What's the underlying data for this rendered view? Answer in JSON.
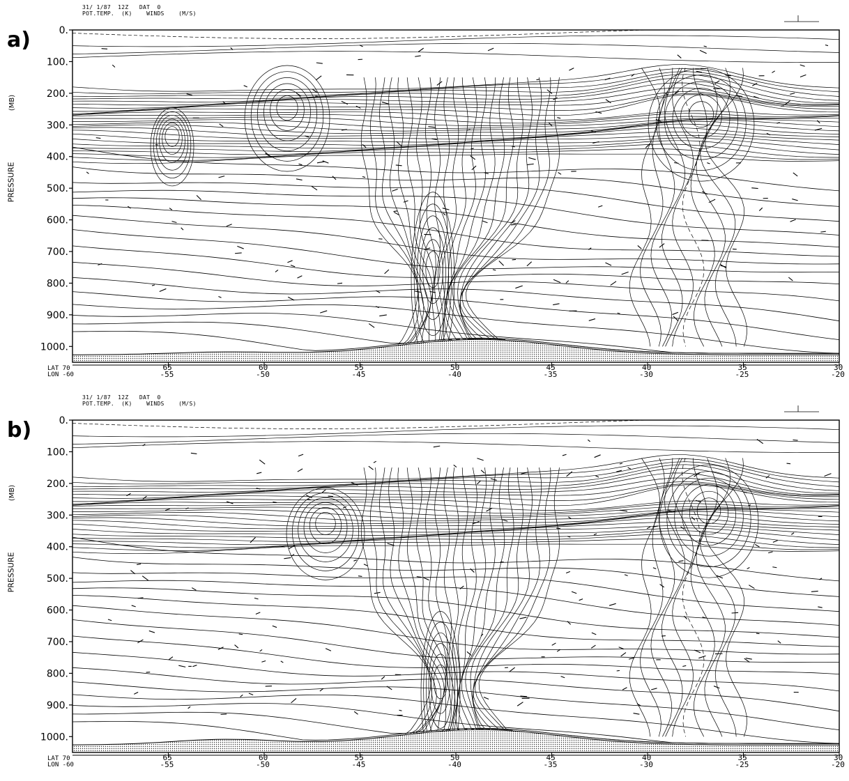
{
  "chart_data": [
    {
      "panel_label": "a)",
      "type": "contour",
      "header_line1": "31/ 1/87  12Z   DAT  0",
      "header_line2": "POT.TEMP.  (K)    WINDS    (M/S)",
      "ylabel": "PRESSURE",
      "yunit": "(MB)",
      "y_ticks": [
        "0.",
        "100.",
        "200.",
        "300.",
        "400.",
        "500.",
        "600.",
        "700.",
        "800.",
        "900.",
        "1000."
      ],
      "y_values": [
        0,
        100,
        200,
        300,
        400,
        500,
        600,
        700,
        800,
        900,
        1000
      ],
      "ylim": [
        0,
        1050
      ],
      "lat_label": "LAT 70",
      "lon_label": "LON -60",
      "lat_ticks": [
        "65",
        "60",
        "55",
        "50",
        "45",
        "40",
        "35",
        "30"
      ],
      "lon_ticks": [
        "-55",
        "-50",
        "-45",
        "-40",
        "-35",
        "-30",
        "-25",
        "-20"
      ],
      "lat_range": [
        70,
        30
      ],
      "lon_range": [
        -60,
        -20
      ]
    },
    {
      "panel_label": "b)",
      "type": "contour",
      "header_line1": "31/ 1/87  12Z   DAT  0",
      "header_line2": "POT.TEMP.  (K)    WINDS    (M/S)",
      "ylabel": "PRESSURE",
      "yunit": "(MB)",
      "y_ticks": [
        "0.",
        "100.",
        "200.",
        "300.",
        "400.",
        "500.",
        "600.",
        "700.",
        "800.",
        "900.",
        "1000."
      ],
      "y_values": [
        0,
        100,
        200,
        300,
        400,
        500,
        600,
        700,
        800,
        900,
        1000
      ],
      "ylim": [
        0,
        1050
      ],
      "lat_label": "LAT 70",
      "lon_label": "LON -60",
      "lat_ticks": [
        "65",
        "60",
        "55",
        "50",
        "45",
        "40",
        "35",
        "30"
      ],
      "lon_ticks": [
        "-55",
        "-50",
        "-45",
        "-40",
        "-35",
        "-30",
        "-25",
        "-20"
      ],
      "lat_range": [
        70,
        30
      ],
      "lon_range": [
        -60,
        -20
      ]
    }
  ]
}
